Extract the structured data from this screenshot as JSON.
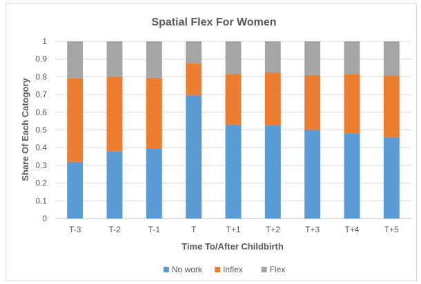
{
  "chart_data": {
    "type": "bar",
    "stacked": true,
    "title": "Spatial Flex For Women",
    "xlabel": "Time To/After Childbirth",
    "ylabel": "Share Of Each Catogory",
    "ylim": [
      0,
      1
    ],
    "yticks": [
      "0",
      "0.1",
      "0.2",
      "0.3",
      "0.4",
      "0.5",
      "0.6",
      "0.7",
      "0.8",
      "0.9",
      "1"
    ],
    "categories": [
      "T-3",
      "T-2",
      "T-1",
      "T",
      "T+1",
      "T+2",
      "T+3",
      "T+4",
      "T+5"
    ],
    "series": [
      {
        "name": "No work",
        "color": "#5b9bd5",
        "values": [
          0.32,
          0.38,
          0.395,
          0.695,
          0.53,
          0.525,
          0.5,
          0.48,
          0.46
        ]
      },
      {
        "name": "Inflex",
        "color": "#ed7d31",
        "values": [
          0.47,
          0.42,
          0.4,
          0.18,
          0.285,
          0.3,
          0.31,
          0.335,
          0.345
        ]
      },
      {
        "name": "Flex",
        "color": "#a5a5a5",
        "values": [
          0.21,
          0.2,
          0.205,
          0.125,
          0.185,
          0.175,
          0.19,
          0.185,
          0.195
        ]
      }
    ],
    "grid": true,
    "legend_position": "bottom"
  }
}
